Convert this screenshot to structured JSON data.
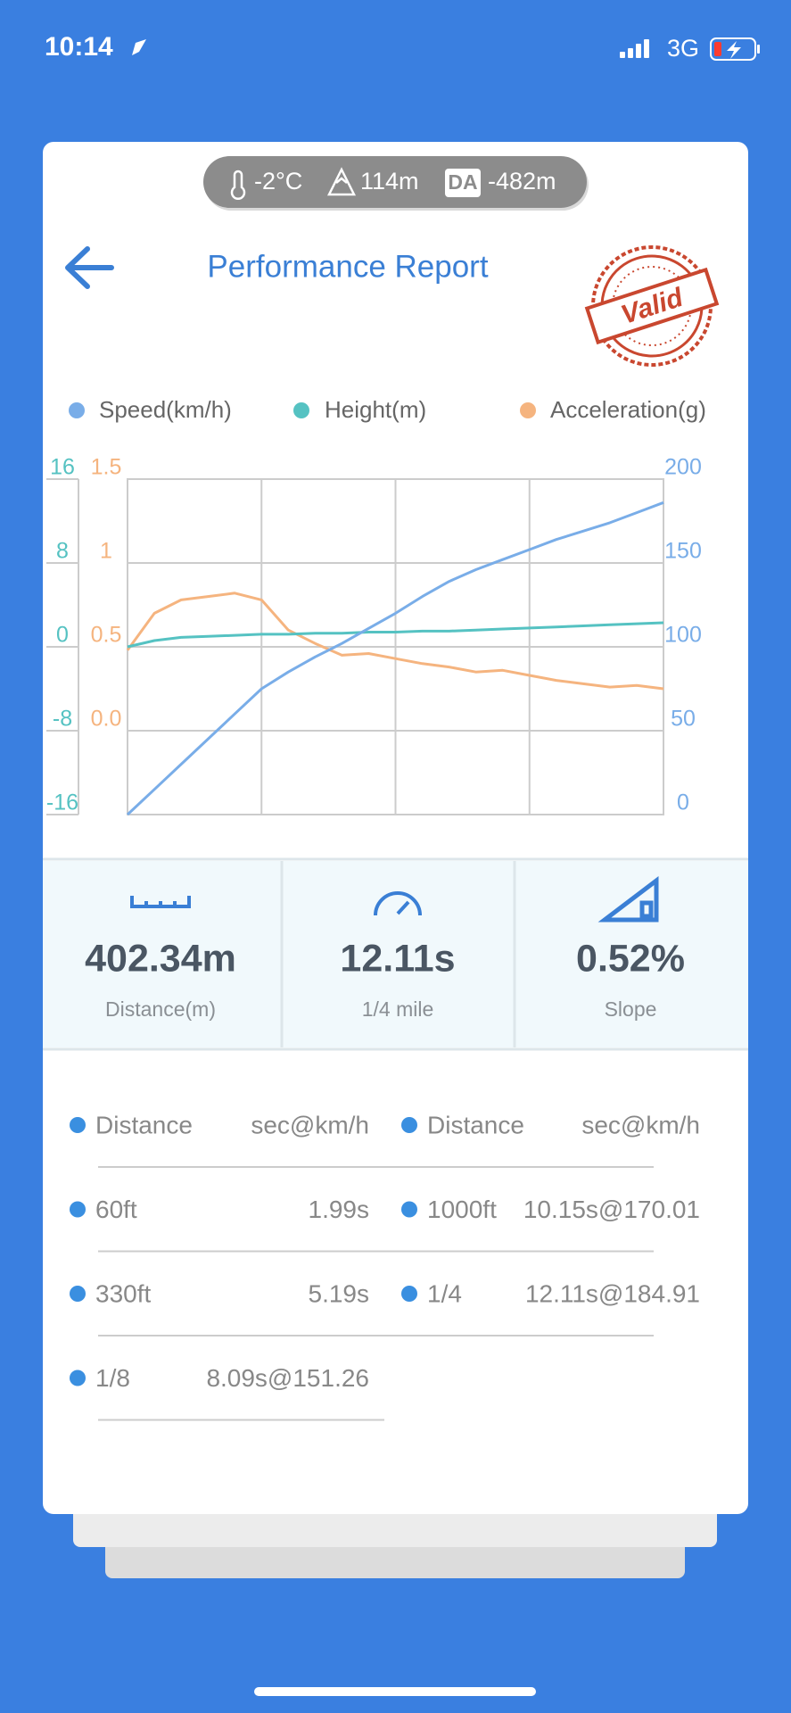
{
  "status_bar": {
    "time": "10:14",
    "network": "3G"
  },
  "conditions": {
    "temperature": "-2°C",
    "altitude": "114m",
    "da_label": "DA",
    "density_altitude": "-482m"
  },
  "header": {
    "title": "Performance Report",
    "stamp": "Valid"
  },
  "chart_data": {
    "type": "line",
    "series": [
      {
        "name": "Speed(km/h)",
        "color": "#79ade8",
        "axis": "y3",
        "values": [
          0,
          15,
          30,
          45,
          60,
          75,
          85,
          94,
          102,
          111,
          120,
          130,
          139,
          146,
          152,
          158,
          164,
          169,
          174,
          180,
          186
        ]
      },
      {
        "name": "Height(m)",
        "color": "#55c2c2",
        "axis": "y",
        "values": [
          0,
          0.6,
          0.9,
          1,
          1.1,
          1.2,
          1.2,
          1.3,
          1.3,
          1.4,
          1.4,
          1.5,
          1.5,
          1.6,
          1.7,
          1.8,
          1.9,
          2,
          2.1,
          2.2,
          2.3
        ]
      },
      {
        "name": "Acceleration(g)",
        "color": "#f5b47f",
        "axis": "y2",
        "values": [
          0.48,
          0.7,
          0.78,
          0.8,
          0.82,
          0.78,
          0.6,
          0.52,
          0.45,
          0.46,
          0.43,
          0.4,
          0.38,
          0.35,
          0.36,
          0.33,
          0.3,
          0.28,
          0.26,
          0.27,
          0.25
        ]
      }
    ],
    "ylim": [
      -16,
      16
    ],
    "yticks": [
      16,
      8,
      0,
      -8,
      -16
    ],
    "y2lim": [
      -0.5,
      1.5
    ],
    "y2ticks": [
      1.5,
      1,
      0.5,
      {
        "value": 0,
        "label": "0.0"
      }
    ],
    "y3lim": [
      0,
      200
    ],
    "y3ticks": [
      200,
      150,
      100,
      50,
      0
    ],
    "grid": true
  },
  "stats": [
    {
      "value": "402.34m",
      "label": "Distance(m)"
    },
    {
      "value": "12.11s",
      "label": "1/4 mile"
    },
    {
      "value": "0.52%",
      "label": "Slope"
    }
  ],
  "table": {
    "columns": [
      "Distance",
      "sec@km/h",
      "Distance",
      "sec@km/h"
    ],
    "rows": [
      [
        "60ft",
        "1.99s",
        "1000ft",
        "10.15s@170.01"
      ],
      [
        "330ft",
        "5.19s",
        "1/4",
        "12.11s@184.91"
      ],
      [
        "1/8",
        "8.09s@151.26"
      ]
    ]
  }
}
